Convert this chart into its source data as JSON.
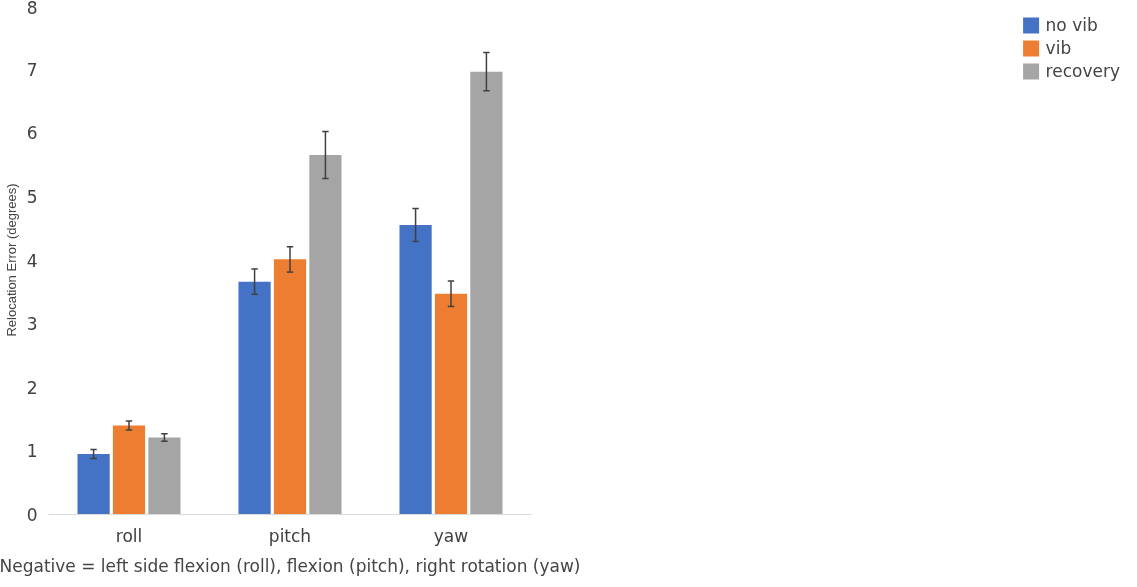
{
  "chart_data": {
    "type": "bar",
    "ylabel": "Relocation Error (degrees)",
    "categories": [
      "roll",
      "pitch",
      "yaw"
    ],
    "series": [
      {
        "name": "no vib",
        "color": "#4472c4",
        "values": [
          0.95,
          3.66,
          4.55
        ],
        "errors": [
          0.07,
          0.2,
          0.26
        ]
      },
      {
        "name": "vib",
        "color": "#ed7d31",
        "values": [
          1.4,
          4.01,
          3.47
        ],
        "errors": [
          0.07,
          0.2,
          0.2
        ]
      },
      {
        "name": "recovery",
        "color": "#a5a5a5",
        "values": [
          1.21,
          5.65,
          6.96
        ],
        "errors": [
          0.06,
          0.37,
          0.3
        ]
      }
    ],
    "ylim": [
      0,
      8
    ],
    "yticks": [
      0,
      1,
      2,
      3,
      4,
      5,
      6,
      7,
      8
    ],
    "grid": false,
    "legend": "right",
    "annotations": [
      "Negative = left side flexion (roll), flexion (pitch), right rotation (yaw)"
    ]
  }
}
